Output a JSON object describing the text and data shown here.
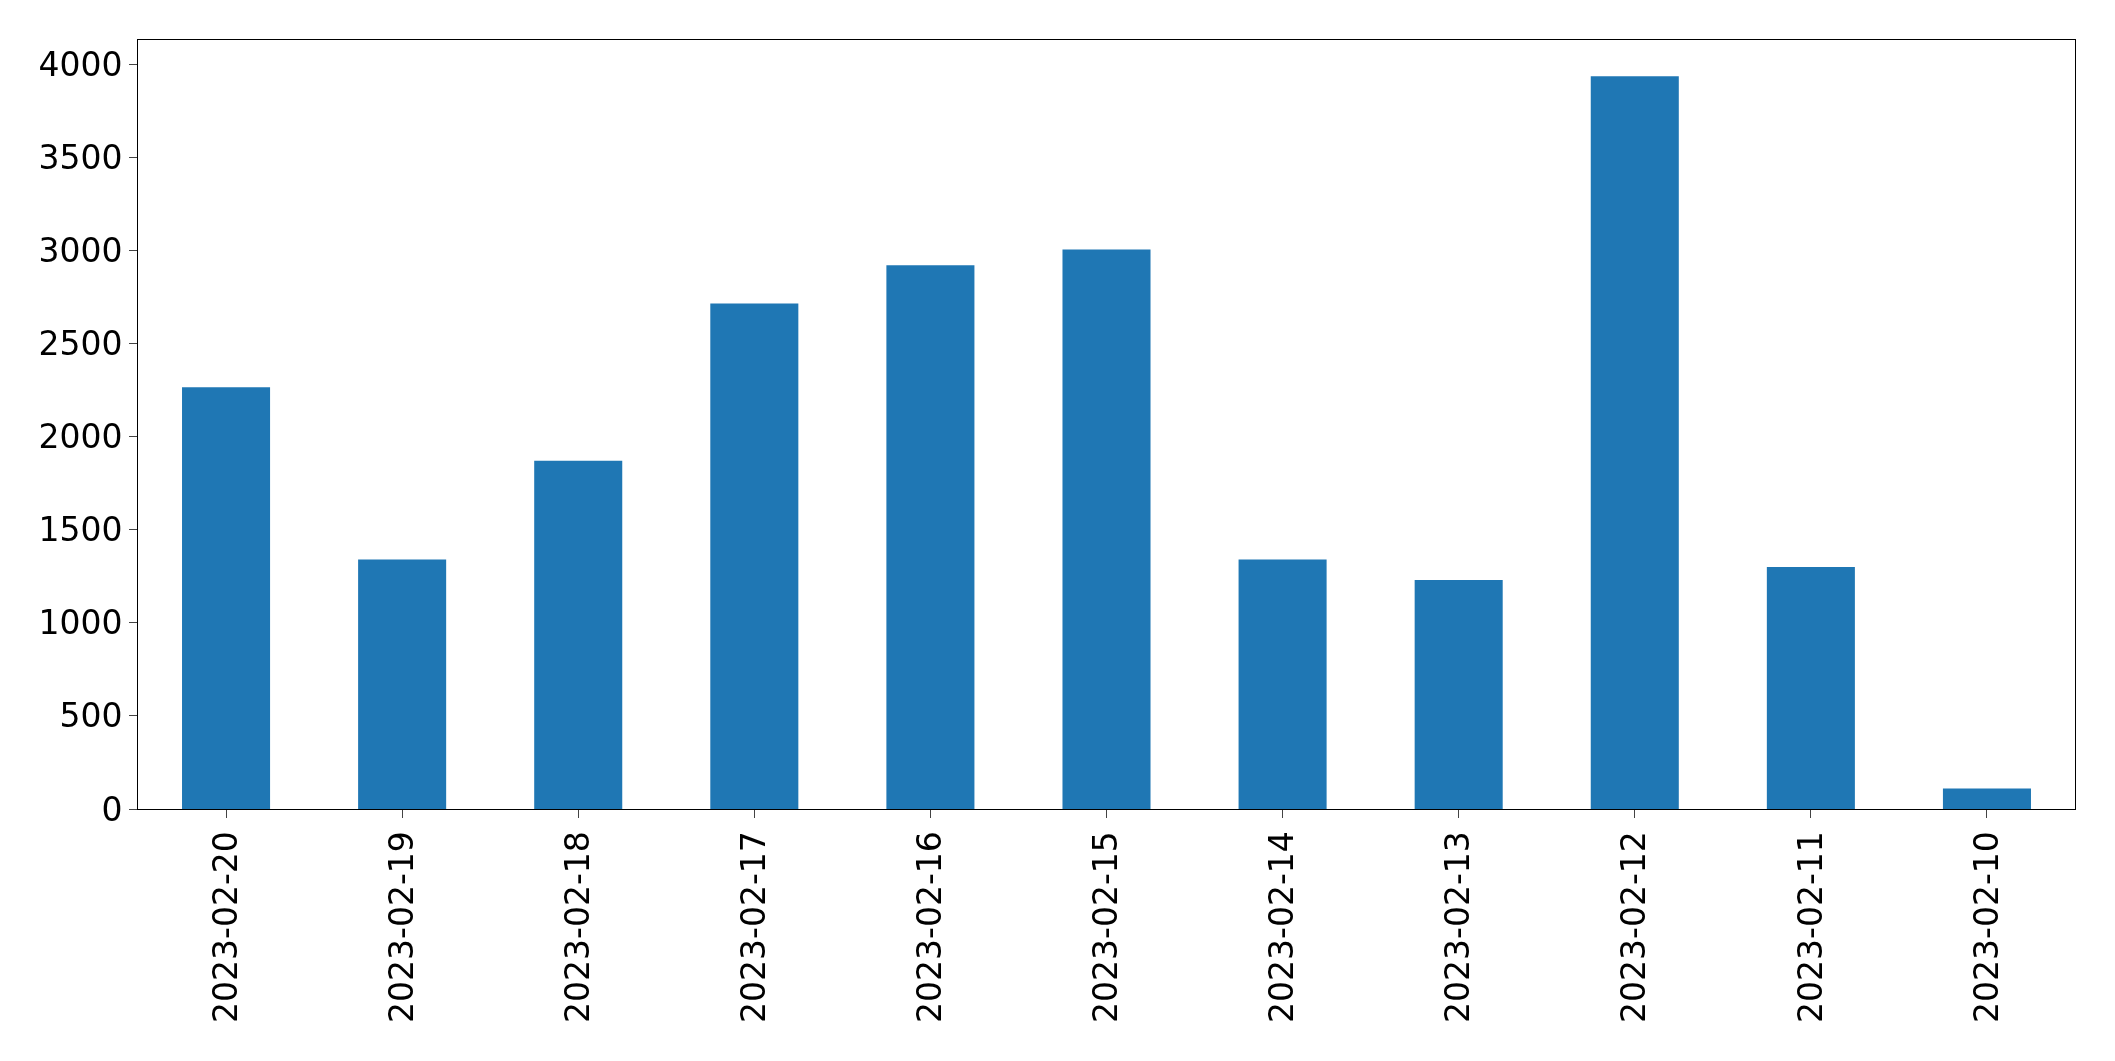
{
  "chart_data": {
    "type": "bar",
    "categories": [
      "2023-02-20",
      "2023-02-19",
      "2023-02-18",
      "2023-02-17",
      "2023-02-16",
      "2023-02-15",
      "2023-02-14",
      "2023-02-13",
      "2023-02-12",
      "2023-02-11",
      "2023-02-10"
    ],
    "values": [
      2265,
      1340,
      1870,
      2715,
      2920,
      3005,
      1340,
      1230,
      3935,
      1300,
      110
    ],
    "color": "#1f77b4",
    "ylim": [
      0,
      4130
    ],
    "yticks": [
      0,
      500,
      1000,
      1500,
      2000,
      2500,
      3000,
      3500,
      4000
    ],
    "legend": false
  }
}
